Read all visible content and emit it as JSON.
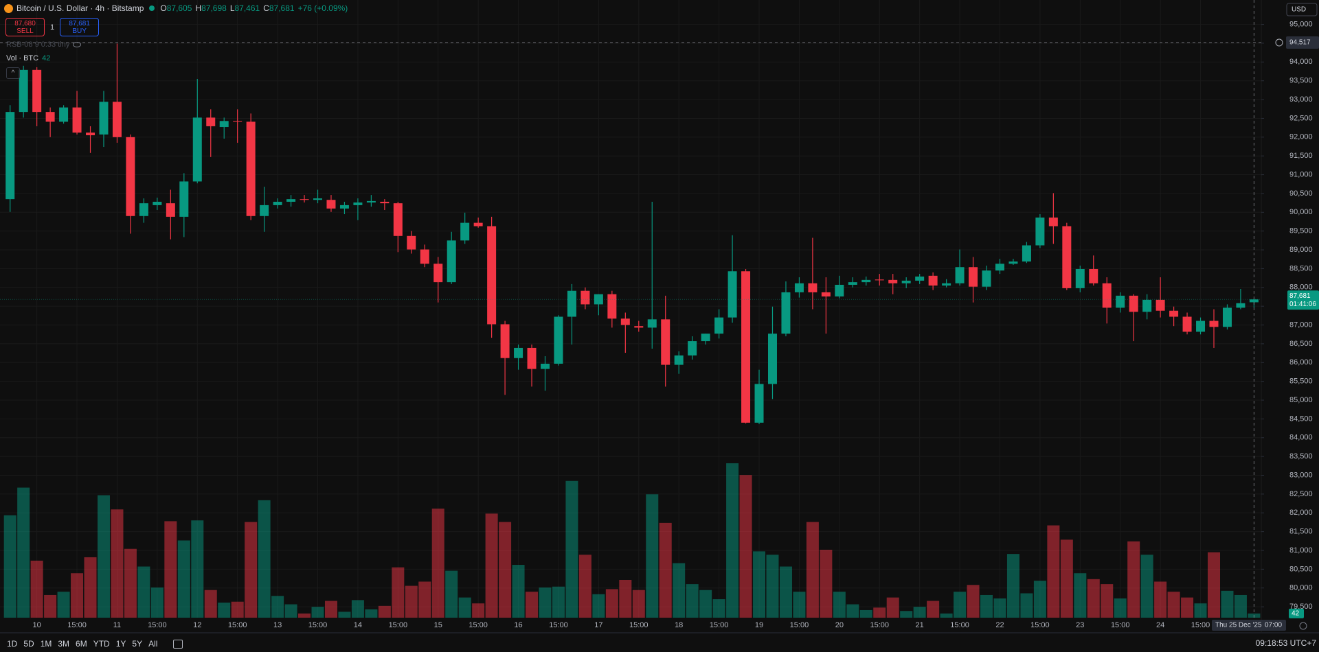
{
  "header": {
    "symbol": "Bitcoin / U.S. Dollar · 4h · Bitstamp",
    "ohlc": [
      {
        "key": "O",
        "value": "87,605"
      },
      {
        "key": "H",
        "value": "87,698"
      },
      {
        "key": "L",
        "value": "87,461"
      },
      {
        "key": "C",
        "value": "87,681"
      }
    ],
    "change": "+76 (+0.09%)",
    "sell": {
      "price": "87,680",
      "label": "SELL"
    },
    "spread": "1",
    "buy": {
      "price": "87,681",
      "label": "BUY"
    },
    "indicator": "RSB-08 9 0.33 tiny",
    "volume_title": "Vol · BTC"
  },
  "currency": "USD",
  "chart_data": {
    "type": "candlestick",
    "up_color": "#089981",
    "down_color": "#f23645",
    "open": [
      90350,
      92670,
      93790,
      92670,
      92410,
      92790,
      92120,
      92070,
      92940,
      92000,
      89900,
      90190,
      90240,
      89880,
      90820,
      92520,
      92270,
      92430,
      92410,
      89900,
      90190,
      90280,
      90350,
      90330,
      90330,
      90100,
      90190,
      90260,
      90280,
      90240,
      89370,
      89010,
      88630,
      88140,
      89250,
      89720,
      89630,
      87020,
      86120,
      86390,
      85830,
      85970,
      87220,
      87910,
      87550,
      87820,
      87170,
      86970,
      86930,
      87150,
      85940,
      86190,
      86570,
      86770,
      87200,
      88430,
      84400,
      85430,
      86770,
      87870,
      88110,
      87870,
      87760,
      88070,
      88140,
      88210,
      88200,
      88110,
      88180,
      88310,
      88050,
      88110,
      88540,
      88020,
      88450,
      88630,
      88690,
      89120,
      89860,
      89630,
      87980,
      88490,
      88110,
      87460,
      87780,
      87350,
      87670,
      87380,
      87220,
      86820,
      87110,
      86950,
      87460,
      87605
    ],
    "high": [
      92850,
      93900,
      93860,
      92790,
      92850,
      93230,
      92290,
      93230,
      94490,
      92070,
      90370,
      90390,
      90600,
      91040,
      93550,
      92740,
      92520,
      92740,
      92630,
      90680,
      90370,
      90460,
      90460,
      90600,
      90460,
      90280,
      90370,
      90460,
      90350,
      90280,
      89500,
      89140,
      88810,
      89480,
      89990,
      89860,
      89880,
      87110,
      86480,
      86480,
      86170,
      87260,
      88090,
      88000,
      87820,
      87910,
      87330,
      87110,
      90280,
      87780,
      86300,
      86700,
      86770,
      87420,
      89390,
      88490,
      85810,
      87490,
      88160,
      88270,
      89320,
      88270,
      88310,
      88270,
      88290,
      88360,
      88360,
      88270,
      88360,
      88400,
      88220,
      89010,
      88810,
      88580,
      88760,
      88760,
      89210,
      89950,
      90510,
      89720,
      88580,
      88850,
      88270,
      87870,
      87820,
      87820,
      88270,
      87490,
      87330,
      87200,
      87420,
      87550,
      87960,
      87698
    ],
    "low": [
      90010,
      92520,
      92290,
      92000,
      92360,
      92070,
      91580,
      91740,
      91850,
      89430,
      89720,
      90060,
      89280,
      89340,
      90770,
      91470,
      91960,
      91850,
      89790,
      89480,
      90100,
      90150,
      90260,
      90240,
      90010,
      89950,
      89790,
      90150,
      90060,
      88940,
      88900,
      88540,
      87600,
      88090,
      89160,
      89590,
      86660,
      85140,
      85810,
      85360,
      85250,
      85920,
      86480,
      87420,
      87260,
      86930,
      86260,
      86820,
      86370,
      85360,
      85700,
      86080,
      86480,
      86640,
      87060,
      84380,
      84360,
      85030,
      86700,
      87730,
      87420,
      86770,
      87710,
      88000,
      88050,
      88050,
      87820,
      87980,
      88090,
      87930,
      88000,
      88050,
      87600,
      87930,
      88360,
      88600,
      88650,
      89050,
      89160,
      87930,
      87870,
      88050,
      87040,
      87330,
      86570,
      87150,
      87200,
      86970,
      86750,
      86750,
      86390,
      86880,
      87420,
      87461
    ],
    "close": [
      92670,
      93790,
      92670,
      92410,
      92790,
      92120,
      92050,
      92940,
      92000,
      89900,
      90240,
      90280,
      89880,
      90820,
      92520,
      92290,
      92430,
      92410,
      89900,
      90190,
      90280,
      90350,
      90330,
      90370,
      90100,
      90190,
      90260,
      90300,
      90240,
      89370,
      89010,
      88630,
      88140,
      89250,
      89720,
      89630,
      87020,
      86120,
      86390,
      85830,
      85970,
      87220,
      87910,
      87550,
      87820,
      87170,
      87000,
      86930,
      87150,
      85940,
      86190,
      86570,
      86770,
      87200,
      88430,
      84400,
      85430,
      86770,
      87870,
      88110,
      87870,
      87760,
      88070,
      88140,
      88200,
      88190,
      88110,
      88180,
      88290,
      88050,
      88110,
      88540,
      88020,
      88450,
      88630,
      88690,
      89120,
      89860,
      89630,
      87980,
      88490,
      88110,
      87460,
      87780,
      87350,
      87670,
      87380,
      87220,
      86820,
      87110,
      86950,
      87460,
      87580,
      87681
    ],
    "volumes": [
      1025,
      1302,
      571,
      227,
      260,
      445,
      605,
      1226,
      1084,
      689,
      512,
      302,
      966,
      773,
      974,
      277,
      151,
      160,
      958,
      1176,
      218,
      134,
      42,
      109,
      168,
      59,
      176,
      84,
      118,
      504,
      319,
      361,
      1092,
      470,
      202,
      143,
      1042,
      958,
      529,
      260,
      302,
      311,
      1369,
      630,
      235,
      286,
      378,
      277,
      1235,
      949,
      546,
      336,
      277,
      185,
      1546,
      1428,
      664,
      630,
      512,
      260,
      958,
      680,
      260,
      134,
      76,
      101,
      202,
      67,
      109,
      168,
      42,
      260,
      328,
      227,
      193,
      638,
      244,
      370,
      924,
      781,
      445,
      386,
      336,
      193,
      764,
      630,
      361,
      260,
      202,
      143,
      655,
      269,
      227,
      42
    ],
    "ylim": [
      79210,
      95650
    ],
    "yticks": [
      {
        "value": 95000,
        "label": "95,000"
      },
      {
        "value": 94500,
        "label": "94,500"
      },
      {
        "value": 94000,
        "label": "94,000"
      },
      {
        "value": 93500,
        "label": "93,500"
      },
      {
        "value": 93000,
        "label": "93,000"
      },
      {
        "value": 92500,
        "label": "92,500"
      },
      {
        "value": 92000,
        "label": "92,000"
      },
      {
        "value": 91500,
        "label": "91,500"
      },
      {
        "value": 91000,
        "label": "91,000"
      },
      {
        "value": 90500,
        "label": "90,500"
      },
      {
        "value": 90000,
        "label": "90,000"
      },
      {
        "value": 89500,
        "label": "89,500"
      },
      {
        "value": 89000,
        "label": "89,000"
      },
      {
        "value": 88500,
        "label": "88,500"
      },
      {
        "value": 88000,
        "label": "88,000"
      },
      {
        "value": 87500,
        "label": "87,500"
      },
      {
        "value": 87000,
        "label": "87,000"
      },
      {
        "value": 86500,
        "label": "86,500"
      },
      {
        "value": 86000,
        "label": "86,000"
      },
      {
        "value": 85500,
        "label": "85,500"
      },
      {
        "value": 85000,
        "label": "85,000"
      },
      {
        "value": 84500,
        "label": "84,500"
      },
      {
        "value": 84000,
        "label": "84,000"
      },
      {
        "value": 83500,
        "label": "83,500"
      },
      {
        "value": 83000,
        "label": "83,000"
      },
      {
        "value": 82500,
        "label": "82,500"
      },
      {
        "value": 82000,
        "label": "82,000"
      },
      {
        "value": 81500,
        "label": "81,500"
      },
      {
        "value": 81000,
        "label": "81,000"
      },
      {
        "value": 80500,
        "label": "80,500"
      },
      {
        "value": 80000,
        "label": "80,000"
      },
      {
        "value": 79500,
        "label": "79,500"
      }
    ],
    "x_labels": [
      "10",
      "15:00",
      "11",
      "15:00",
      "12",
      "15:00",
      "13",
      "15:00",
      "14",
      "15:00",
      "15",
      "15:00",
      "16",
      "15:00",
      "17",
      "15:00",
      "18",
      "15:00",
      "19",
      "15:00",
      "20",
      "15:00",
      "21",
      "15:00",
      "22",
      "15:00",
      "23",
      "15:00",
      "24",
      "15:00"
    ],
    "grid": true,
    "crosshair": {
      "price": 94517,
      "price_label": "94,517",
      "date_label": "Thu 25 Dec '25",
      "time_label": "07:00"
    },
    "last_price_label": "87,681",
    "countdown": "01:41:06"
  },
  "toolbar": {
    "ranges": [
      "1D",
      "5D",
      "1M",
      "3M",
      "6M",
      "YTD",
      "1Y",
      "5Y",
      "All"
    ],
    "clock": "09:18:53 UTC+7"
  }
}
